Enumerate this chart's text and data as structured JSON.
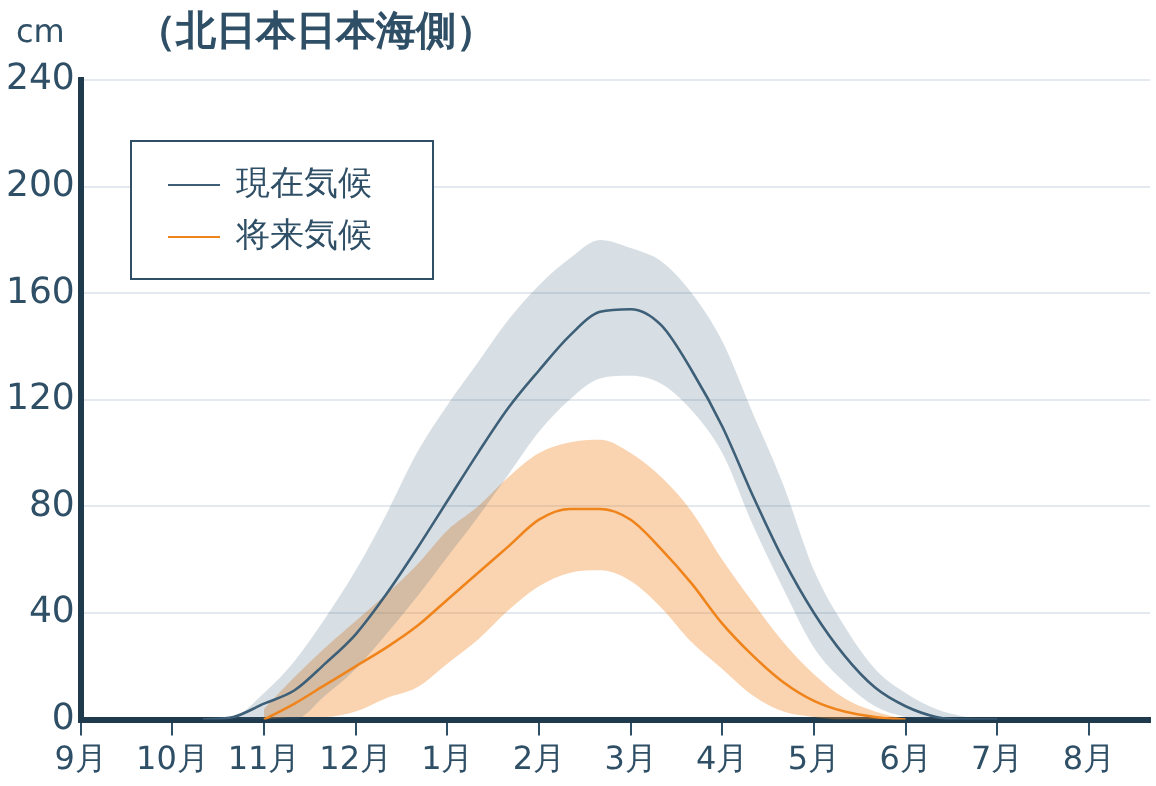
{
  "chart_data": {
    "type": "line",
    "title": "（北日本日本海側）",
    "ylabel": "cm",
    "categories": [
      "9月",
      null,
      null,
      "10月",
      null,
      null,
      "11月",
      null,
      null,
      "12月",
      null,
      null,
      "1月",
      null,
      null,
      "2月",
      null,
      null,
      "3月",
      null,
      null,
      "4月",
      null,
      null,
      "5月",
      null,
      null,
      "6月",
      null,
      null,
      "7月",
      null,
      null,
      "8月",
      null,
      null
    ],
    "ylim": [
      0,
      240
    ],
    "yticks": [
      0,
      40,
      80,
      120,
      160,
      200,
      240
    ],
    "series": [
      {
        "name": "現在気候",
        "color": "#3d5f78",
        "values": [
          null,
          null,
          null,
          null,
          0,
          1,
          6,
          11,
          21,
          32,
          47,
          64,
          82,
          100,
          117,
          131,
          144,
          153,
          154,
          148,
          131,
          110,
          84,
          60,
          40,
          24,
          12,
          5,
          1,
          0,
          0,
          null,
          null,
          null,
          null,
          null
        ],
        "lower": [
          null,
          null,
          null,
          null,
          0,
          0,
          0,
          0,
          9,
          19,
          32,
          46,
          61,
          76,
          92,
          108,
          120,
          128,
          129,
          126,
          116,
          100,
          73,
          49,
          27,
          14,
          5,
          1,
          0,
          0,
          0,
          null,
          null,
          null,
          null,
          null
        ],
        "upper": [
          null,
          null,
          null,
          null,
          0,
          1,
          10,
          22,
          38,
          56,
          77,
          100,
          118,
          134,
          150,
          163,
          173,
          180,
          177,
          172,
          160,
          142,
          115,
          88,
          56,
          35,
          19,
          10,
          4,
          1,
          0,
          null,
          null,
          null,
          null,
          null
        ]
      },
      {
        "name": "将来気候",
        "color": "#f0841c",
        "values": [
          null,
          null,
          null,
          null,
          null,
          null,
          0,
          6,
          13,
          20,
          27,
          35,
          45,
          55,
          65,
          75,
          79,
          79,
          75,
          64,
          51,
          36,
          24,
          14,
          7,
          3,
          1,
          0,
          null,
          null,
          null,
          null,
          null,
          null,
          null,
          null
        ],
        "lower": [
          null,
          null,
          null,
          null,
          null,
          null,
          0,
          1,
          1,
          3,
          8,
          12,
          21,
          30,
          41,
          50,
          55,
          56,
          52,
          42,
          29,
          19,
          9,
          3,
          1,
          0,
          0,
          0,
          null,
          null,
          null,
          null,
          null,
          null,
          null,
          null
        ],
        "upper": [
          null,
          null,
          null,
          null,
          null,
          null,
          4,
          16,
          27,
          37,
          47,
          58,
          71,
          80,
          91,
          100,
          104,
          105,
          100,
          91,
          78,
          60,
          44,
          29,
          17,
          8,
          3,
          0,
          null,
          null,
          null,
          null,
          null,
          null,
          null,
          null
        ]
      }
    ],
    "grid": "y",
    "legend": "top left",
    "marker": "none",
    "line_style": "solid"
  }
}
